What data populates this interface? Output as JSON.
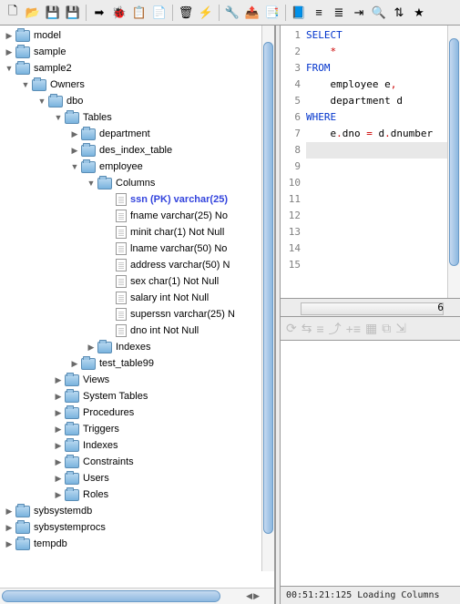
{
  "toolbar": {
    "icons": [
      "new-file",
      "open-folder",
      "save",
      "save-all",
      "|",
      "run",
      "debug",
      "copy",
      "paste",
      "|",
      "delete",
      "bolt",
      "|",
      "tools",
      "export",
      "props",
      "|",
      "book",
      "align-l",
      "align-r",
      "indent",
      "find",
      "sort",
      "star"
    ]
  },
  "tree": [
    {
      "depth": 0,
      "arrow": "right",
      "icon": "folder",
      "label": "model"
    },
    {
      "depth": 0,
      "arrow": "right",
      "icon": "folder",
      "label": "sample"
    },
    {
      "depth": 0,
      "arrow": "down",
      "icon": "folder",
      "label": "sample2"
    },
    {
      "depth": 1,
      "arrow": "down",
      "icon": "folder",
      "label": "Owners"
    },
    {
      "depth": 2,
      "arrow": "down",
      "icon": "folder",
      "label": "dbo"
    },
    {
      "depth": 3,
      "arrow": "down",
      "icon": "folder",
      "label": "Tables"
    },
    {
      "depth": 4,
      "arrow": "right",
      "icon": "folder",
      "label": "department"
    },
    {
      "depth": 4,
      "arrow": "right",
      "icon": "folder",
      "label": "des_index_table"
    },
    {
      "depth": 4,
      "arrow": "down",
      "icon": "folder",
      "label": "employee"
    },
    {
      "depth": 5,
      "arrow": "down",
      "icon": "folder",
      "label": "Columns"
    },
    {
      "depth": 6,
      "arrow": "",
      "icon": "file",
      "label": "ssn (PK) varchar(25)",
      "pk": true
    },
    {
      "depth": 6,
      "arrow": "",
      "icon": "file",
      "label": "fname varchar(25) No"
    },
    {
      "depth": 6,
      "arrow": "",
      "icon": "file",
      "label": "minit char(1) Not Null"
    },
    {
      "depth": 6,
      "arrow": "",
      "icon": "file",
      "label": "lname varchar(50) No"
    },
    {
      "depth": 6,
      "arrow": "",
      "icon": "file",
      "label": "address varchar(50) N"
    },
    {
      "depth": 6,
      "arrow": "",
      "icon": "file",
      "label": "sex char(1) Not Null"
    },
    {
      "depth": 6,
      "arrow": "",
      "icon": "file",
      "label": "salary int Not Null"
    },
    {
      "depth": 6,
      "arrow": "",
      "icon": "file",
      "label": "superssn varchar(25) N"
    },
    {
      "depth": 6,
      "arrow": "",
      "icon": "file",
      "label": "dno int Not Null"
    },
    {
      "depth": 5,
      "arrow": "right",
      "icon": "folder",
      "label": "Indexes"
    },
    {
      "depth": 4,
      "arrow": "right",
      "icon": "folder",
      "label": "test_table99"
    },
    {
      "depth": 3,
      "arrow": "right",
      "icon": "folder",
      "label": "Views"
    },
    {
      "depth": 3,
      "arrow": "right",
      "icon": "folder",
      "label": "System Tables"
    },
    {
      "depth": 3,
      "arrow": "right",
      "icon": "folder",
      "label": "Procedures"
    },
    {
      "depth": 3,
      "arrow": "right",
      "icon": "folder",
      "label": "Triggers"
    },
    {
      "depth": 3,
      "arrow": "right",
      "icon": "folder",
      "label": "Indexes"
    },
    {
      "depth": 3,
      "arrow": "right",
      "icon": "folder",
      "label": "Constraints"
    },
    {
      "depth": 3,
      "arrow": "right",
      "icon": "folder",
      "label": "Users"
    },
    {
      "depth": 3,
      "arrow": "right",
      "icon": "folder",
      "label": "Roles"
    },
    {
      "depth": 0,
      "arrow": "right",
      "icon": "folder",
      "label": "sybsystemdb"
    },
    {
      "depth": 0,
      "arrow": "right",
      "icon": "folder",
      "label": "sybsystemprocs"
    },
    {
      "depth": 0,
      "arrow": "right",
      "icon": "folder",
      "label": "tempdb"
    }
  ],
  "editor": {
    "line_count": 15,
    "cursor_line": 8,
    "lines": [
      {
        "n": 1,
        "segments": [
          {
            "t": "SELECT",
            "c": "kw"
          }
        ]
      },
      {
        "n": 2,
        "segments": [
          {
            "t": "    "
          },
          {
            "t": "*",
            "c": "op"
          }
        ]
      },
      {
        "n": 3,
        "segments": [
          {
            "t": "FROM",
            "c": "kw"
          }
        ]
      },
      {
        "n": 4,
        "segments": [
          {
            "t": "    employee e"
          },
          {
            "t": ",",
            "c": "op"
          }
        ]
      },
      {
        "n": 5,
        "segments": [
          {
            "t": "    department d"
          }
        ]
      },
      {
        "n": 6,
        "segments": [
          {
            "t": "WHERE",
            "c": "kw"
          }
        ]
      },
      {
        "n": 7,
        "segments": [
          {
            "t": "    e"
          },
          {
            "t": ".",
            "c": "op"
          },
          {
            "t": "dno "
          },
          {
            "t": "=",
            "c": "op"
          },
          {
            "t": " d"
          },
          {
            "t": ".",
            "c": "op"
          },
          {
            "t": "dnumber"
          }
        ]
      }
    ],
    "hstatus_value": "6"
  },
  "status": {
    "text": "00:51:21:125 Loading Columns"
  },
  "colors": {
    "keyword": "#0033cc",
    "operator": "#cc0000",
    "pk": "#3344dd",
    "bg": "#ececec"
  }
}
